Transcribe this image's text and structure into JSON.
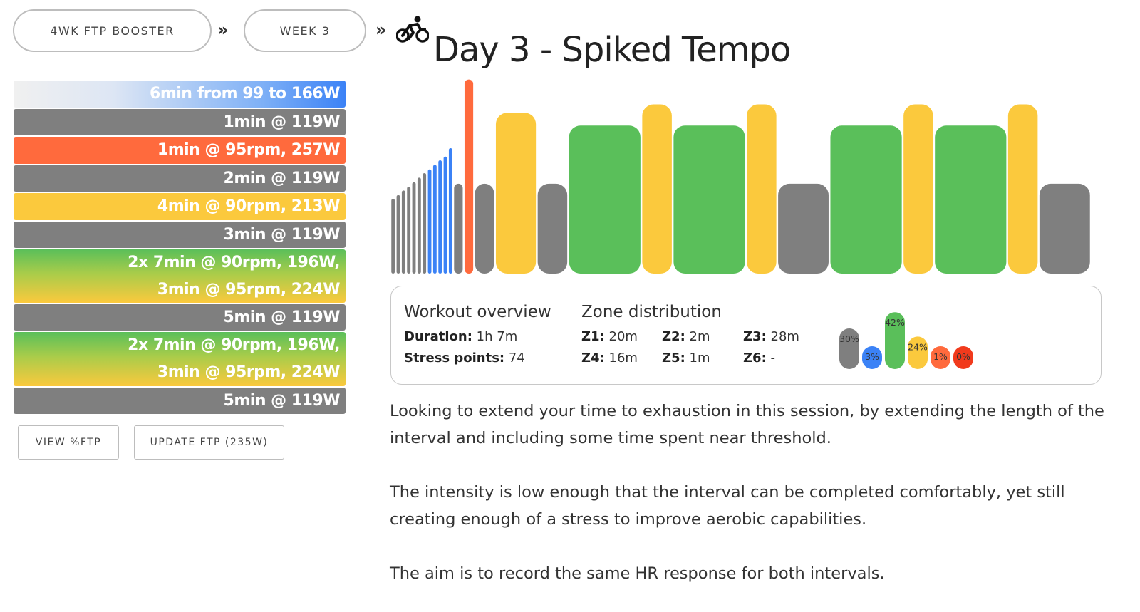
{
  "breadcrumb": {
    "plan_label": "4WK FTP BOOSTER",
    "separator": "»",
    "week_label": "WEEK 3"
  },
  "workout_title": "Day 3 - Spiked Tempo",
  "icons": {
    "title_icon": "cyclist-icon"
  },
  "colors": {
    "recovery": "#7f7f7f",
    "endurance_blue": "#3b82f6",
    "tempo": "#fbc93d",
    "sweetspot": "#5abf5a",
    "vo2": "#ff6a3d",
    "anaerobic": "#f13a1c"
  },
  "intervals": [
    {
      "label": "6min from 99 to 166W",
      "style": "warmup"
    },
    {
      "label": "1min @ 119W",
      "style": "recovery"
    },
    {
      "label": "1min @ 95rpm, 257W",
      "style": "vo2"
    },
    {
      "label": "2min @ 119W",
      "style": "recovery"
    },
    {
      "label": "4min @ 90rpm, 213W",
      "style": "tempo"
    },
    {
      "label": "3min @ 119W",
      "style": "recovery"
    },
    {
      "label_line1": "2x 7min @ 90rpm, 196W,",
      "label_line2": "3min @ 95rpm, 224W",
      "style": "repeat"
    },
    {
      "label": "5min @ 119W",
      "style": "recovery"
    },
    {
      "label_line1": "2x 7min @ 90rpm, 196W,",
      "label_line2": "3min @ 95rpm, 224W",
      "style": "repeat"
    },
    {
      "label": "5min @ 119W",
      "style": "recovery"
    }
  ],
  "buttons": {
    "view_ftp": "VIEW %FTP",
    "update_ftp": "UPDATE FTP (235W)"
  },
  "chart_data": {
    "type": "bar",
    "xlabel": "",
    "ylabel": "",
    "x_unit": "min",
    "y_unit": "W",
    "segments": [
      {
        "duration": 0.5,
        "power": 99,
        "zone": "recovery"
      },
      {
        "duration": 0.5,
        "power": 104,
        "zone": "recovery"
      },
      {
        "duration": 0.5,
        "power": 110,
        "zone": "recovery"
      },
      {
        "duration": 0.5,
        "power": 115,
        "zone": "recovery"
      },
      {
        "duration": 0.5,
        "power": 121,
        "zone": "recovery"
      },
      {
        "duration": 0.5,
        "power": 127,
        "zone": "recovery"
      },
      {
        "duration": 0.5,
        "power": 133,
        "zone": "recovery"
      },
      {
        "duration": 0.5,
        "power": 138,
        "zone": "endurance"
      },
      {
        "duration": 0.5,
        "power": 144,
        "zone": "endurance"
      },
      {
        "duration": 0.5,
        "power": 150,
        "zone": "endurance"
      },
      {
        "duration": 0.5,
        "power": 155,
        "zone": "endurance"
      },
      {
        "duration": 0.5,
        "power": 166,
        "zone": "endurance"
      },
      {
        "duration": 1,
        "power": 119,
        "zone": "recovery"
      },
      {
        "duration": 1,
        "power": 257,
        "zone": "vo2"
      },
      {
        "duration": 2,
        "power": 119,
        "zone": "recovery"
      },
      {
        "duration": 4,
        "power": 213,
        "zone": "tempo"
      },
      {
        "duration": 3,
        "power": 119,
        "zone": "recovery"
      },
      {
        "duration": 7,
        "power": 196,
        "zone": "sweetspot"
      },
      {
        "duration": 3,
        "power": 224,
        "zone": "tempo"
      },
      {
        "duration": 7,
        "power": 196,
        "zone": "sweetspot"
      },
      {
        "duration": 3,
        "power": 224,
        "zone": "tempo"
      },
      {
        "duration": 5,
        "power": 119,
        "zone": "recovery"
      },
      {
        "duration": 7,
        "power": 196,
        "zone": "sweetspot"
      },
      {
        "duration": 3,
        "power": 224,
        "zone": "tempo"
      },
      {
        "duration": 7,
        "power": 196,
        "zone": "sweetspot"
      },
      {
        "duration": 3,
        "power": 224,
        "zone": "tempo"
      },
      {
        "duration": 5,
        "power": 119,
        "zone": "recovery"
      }
    ]
  },
  "overview": {
    "heading": "Workout overview",
    "duration_label": "Duration:",
    "duration_value": "1h 7m",
    "stress_label": "Stress points:",
    "stress_value": "74"
  },
  "zones": {
    "heading": "Zone distribution",
    "items": [
      {
        "label": "Z1:",
        "value": "20m"
      },
      {
        "label": "Z2:",
        "value": "2m"
      },
      {
        "label": "Z3:",
        "value": "28m"
      },
      {
        "label": "Z4:",
        "value": "16m"
      },
      {
        "label": "Z5:",
        "value": "1m"
      },
      {
        "label": "Z6:",
        "value": "-"
      }
    ],
    "distribution": [
      {
        "label": "30%",
        "percent": 30,
        "color": "#7f7f7f"
      },
      {
        "label": "3%",
        "percent": 3,
        "color": "#3b82f6"
      },
      {
        "label": "42%",
        "percent": 42,
        "color": "#5abf5a"
      },
      {
        "label": "24%",
        "percent": 24,
        "color": "#fbc93d"
      },
      {
        "label": "1%",
        "percent": 1,
        "color": "#ff6a3d"
      },
      {
        "label": "0%",
        "percent": 0,
        "color": "#f13a1c"
      }
    ]
  },
  "description": [
    "Looking to extend your time to exhaustion in this session, by extending the length of the interval and including some time spent near threshold.",
    "The intensity is low enough that the interval can be completed comfortably, yet still creating enough of a stress to improve aerobic capabilities.",
    "The aim is to record the same HR response for both intervals."
  ]
}
